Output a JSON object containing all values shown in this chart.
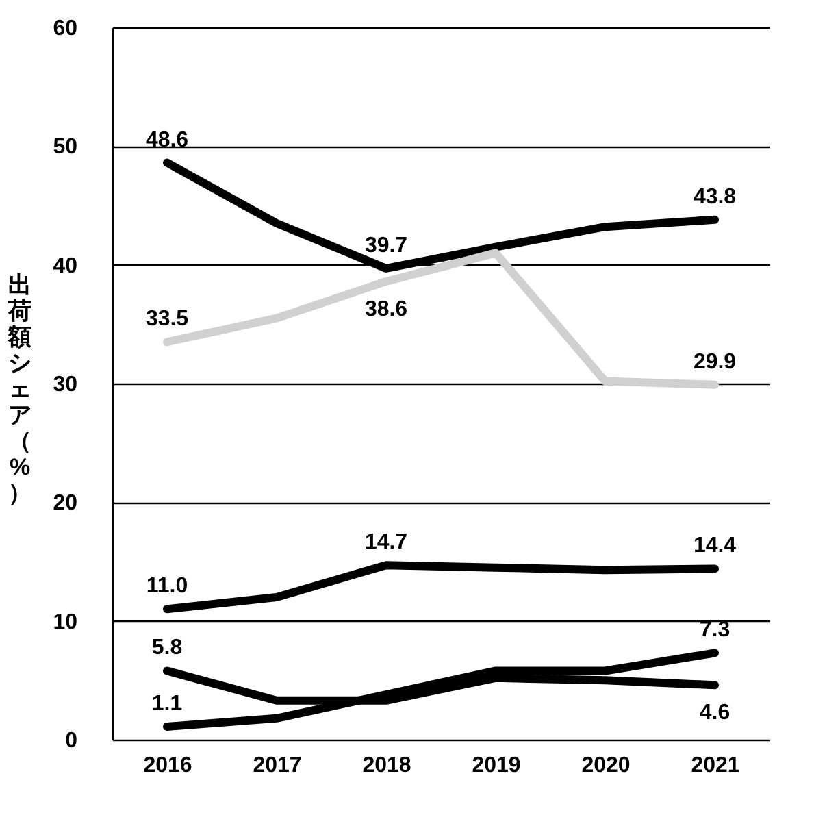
{
  "chart_data": {
    "type": "line",
    "ylabel": "出荷額シェア（%）",
    "categories": [
      "2016",
      "2017",
      "2018",
      "2019",
      "2020",
      "2021"
    ],
    "series": [
      {
        "color": "#000000",
        "values": [
          48.6,
          43.5,
          39.7,
          41.5,
          43.2,
          43.8
        ],
        "value_labels": [
          "48.6",
          null,
          "39.7",
          null,
          null,
          "43.8"
        ]
      },
      {
        "color": "#d0d0d0",
        "values": [
          33.5,
          35.5,
          38.6,
          41.0,
          30.2,
          29.9
        ],
        "value_labels": [
          "33.5",
          null,
          "38.6",
          null,
          null,
          "29.9"
        ]
      },
      {
        "color": "#000000",
        "values": [
          11.0,
          12.0,
          14.7,
          14.5,
          14.3,
          14.4
        ],
        "value_labels": [
          "11.0",
          null,
          "14.7",
          null,
          null,
          "14.4"
        ]
      },
      {
        "color": "#000000",
        "values": [
          5.8,
          3.3,
          3.3,
          5.2,
          5.0,
          4.6
        ],
        "value_labels": [
          "5.8",
          null,
          null,
          null,
          null,
          "4.6"
        ]
      },
      {
        "color": "#000000",
        "values": [
          1.1,
          1.8,
          3.8,
          5.8,
          5.8,
          7.3
        ],
        "value_labels": [
          "1.1",
          null,
          null,
          null,
          null,
          "7.3"
        ]
      }
    ],
    "ylim": [
      0,
      60
    ],
    "yticks": [
      0,
      10,
      20,
      30,
      40,
      50,
      60
    ],
    "grid": "y",
    "legend": false,
    "marker": "none",
    "line_style": "solid"
  }
}
